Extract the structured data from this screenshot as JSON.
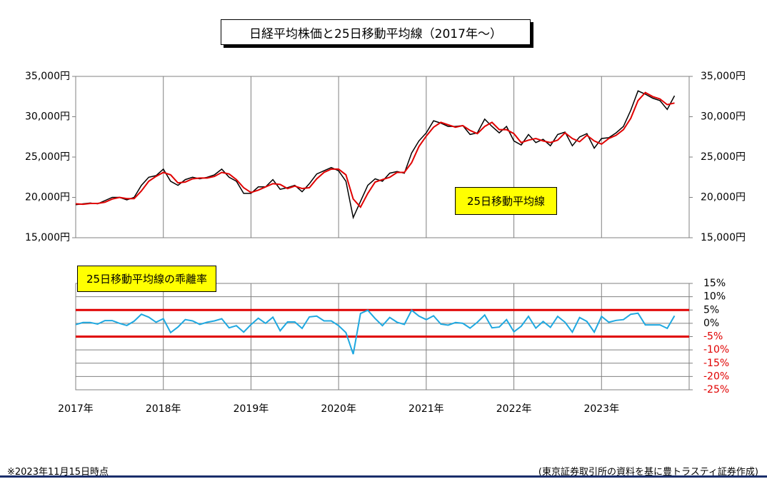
{
  "title": "日経平均株価と25日移動平均線（2017年～）",
  "note": "※2023年11月15日時点",
  "source": "(東京証券取引所の資料を基に豊トラスティ証券作成)",
  "chart_data": [
    {
      "type": "line",
      "ylim": [
        15000,
        35000
      ],
      "yticks": [
        {
          "value": 15000,
          "label": "15,000円"
        },
        {
          "value": 20000,
          "label": "20,000円"
        },
        {
          "value": 25000,
          "label": "25,000円"
        },
        {
          "value": 30000,
          "label": "30,000円"
        },
        {
          "value": 35000,
          "label": "35,000円"
        }
      ],
      "grid": "x",
      "series": [
        {
          "color": "#000000",
          "values": [
            19100,
            19200,
            19300,
            19200,
            19600,
            20000,
            20000,
            19700,
            20000,
            21500,
            22500,
            22700,
            23500,
            22000,
            21500,
            22200,
            22500,
            22300,
            22500,
            22800,
            23500,
            22500,
            22000,
            20500,
            20500,
            21300,
            21300,
            22200,
            21000,
            21200,
            21500,
            20700,
            21700,
            22900,
            23300,
            23700,
            23300,
            22000,
            17500,
            19500,
            21500,
            22300,
            22000,
            23000,
            23200,
            23000,
            25500,
            27000,
            28000,
            29500,
            29200,
            28800,
            28800,
            28900,
            27800,
            28000,
            29700,
            28800,
            28000,
            28800,
            27000,
            26500,
            27800,
            26800,
            27200,
            26400,
            27800,
            28100,
            26400,
            27500,
            27900,
            26100,
            27300,
            27400,
            28000,
            28800,
            30800,
            33200,
            32800,
            32300,
            32000,
            30900,
            32600,
            null
          ]
        },
        {
          "name": "25日移動平均線",
          "color": "#e00000",
          "values": [
            19200,
            19150,
            19250,
            19250,
            19400,
            19800,
            20000,
            19850,
            19850,
            20800,
            22000,
            22600,
            23100,
            22800,
            21800,
            21900,
            22300,
            22400,
            22400,
            22600,
            23100,
            22900,
            22200,
            21200,
            20600,
            20900,
            21300,
            21700,
            21600,
            21100,
            21400,
            21100,
            21200,
            22300,
            23100,
            23500,
            23500,
            22800,
            19800,
            18800,
            20500,
            21900,
            22200,
            22500,
            23100,
            23100,
            24300,
            26300,
            27600,
            28700,
            29300,
            29000,
            28700,
            28900,
            28300,
            27900,
            28800,
            29300,
            28400,
            28400,
            27900,
            26800,
            27100,
            27300,
            27000,
            26800,
            27100,
            28000,
            27300,
            26900,
            27700,
            27000,
            26600,
            27300,
            27700,
            28400,
            29800,
            32000,
            33000,
            32500,
            32200,
            31500,
            31700,
            null
          ]
        }
      ]
    },
    {
      "type": "line",
      "categories": [
        "2017年",
        null,
        null,
        null,
        null,
        null,
        null,
        null,
        null,
        null,
        null,
        null,
        "2018年",
        null,
        null,
        null,
        null,
        null,
        null,
        null,
        null,
        null,
        null,
        null,
        "2019年",
        null,
        null,
        null,
        null,
        null,
        null,
        null,
        null,
        null,
        null,
        null,
        "2020年",
        null,
        null,
        null,
        null,
        null,
        null,
        null,
        null,
        null,
        null,
        null,
        "2021年",
        null,
        null,
        null,
        null,
        null,
        null,
        null,
        null,
        null,
        null,
        null,
        "2022年",
        null,
        null,
        null,
        null,
        null,
        null,
        null,
        null,
        null,
        null,
        null,
        "2023年",
        null,
        null,
        null,
        null,
        null,
        null,
        null,
        null,
        null,
        null,
        null
      ],
      "ylim": [
        -25,
        15
      ],
      "yticks": [
        {
          "value": 15,
          "label": "15%"
        },
        {
          "value": 10,
          "label": "10%"
        },
        {
          "value": 5,
          "label": "5%"
        },
        {
          "value": 0,
          "label": "0%"
        },
        {
          "value": -5,
          "label": "-5%"
        },
        {
          "value": -10,
          "label": "-10%"
        },
        {
          "value": -15,
          "label": "-15%"
        },
        {
          "value": -20,
          "label": "-20%"
        },
        {
          "value": -25,
          "label": "-25%"
        }
      ],
      "negative_tick_color": "#e00000",
      "grid": "both",
      "hlines": [
        5,
        -5
      ],
      "hline_color": "#e00000",
      "series": [
        {
          "name": "25日移動平均線の乖離率",
          "color": "#1fa8e0",
          "values": [
            -0.5,
            0.3,
            0.3,
            -0.3,
            1.0,
            1.0,
            0,
            -0.8,
            0.8,
            3.4,
            2.3,
            0.4,
            1.7,
            -3.5,
            -1.4,
            1.4,
            0.9,
            -0.4,
            0.4,
            0.9,
            1.7,
            -1.7,
            -0.9,
            -3.3,
            -0.5,
            1.9,
            0,
            2.3,
            -2.8,
            0.5,
            0.5,
            -1.9,
            2.4,
            2.7,
            0.9,
            0.9,
            -0.9,
            -3.5,
            -11.6,
            3.7,
            4.9,
            1.8,
            -0.9,
            2.2,
            0.4,
            -0.4,
            4.9,
            2.7,
            1.4,
            2.8,
            -0.3,
            -0.7,
            0.3,
            0,
            -1.8,
            0.4,
            3.1,
            -1.7,
            -1.4,
            1.4,
            -3.2,
            -1.1,
            2.6,
            -1.8,
            0.7,
            -1.5,
            2.6,
            0.4,
            -3.3,
            2.2,
            0.7,
            -3.3,
            2.6,
            0.4,
            1.1,
            1.4,
            3.4,
            3.8,
            -0.6,
            -0.6,
            -0.6,
            -1.9,
            2.8,
            null
          ]
        }
      ]
    }
  ]
}
